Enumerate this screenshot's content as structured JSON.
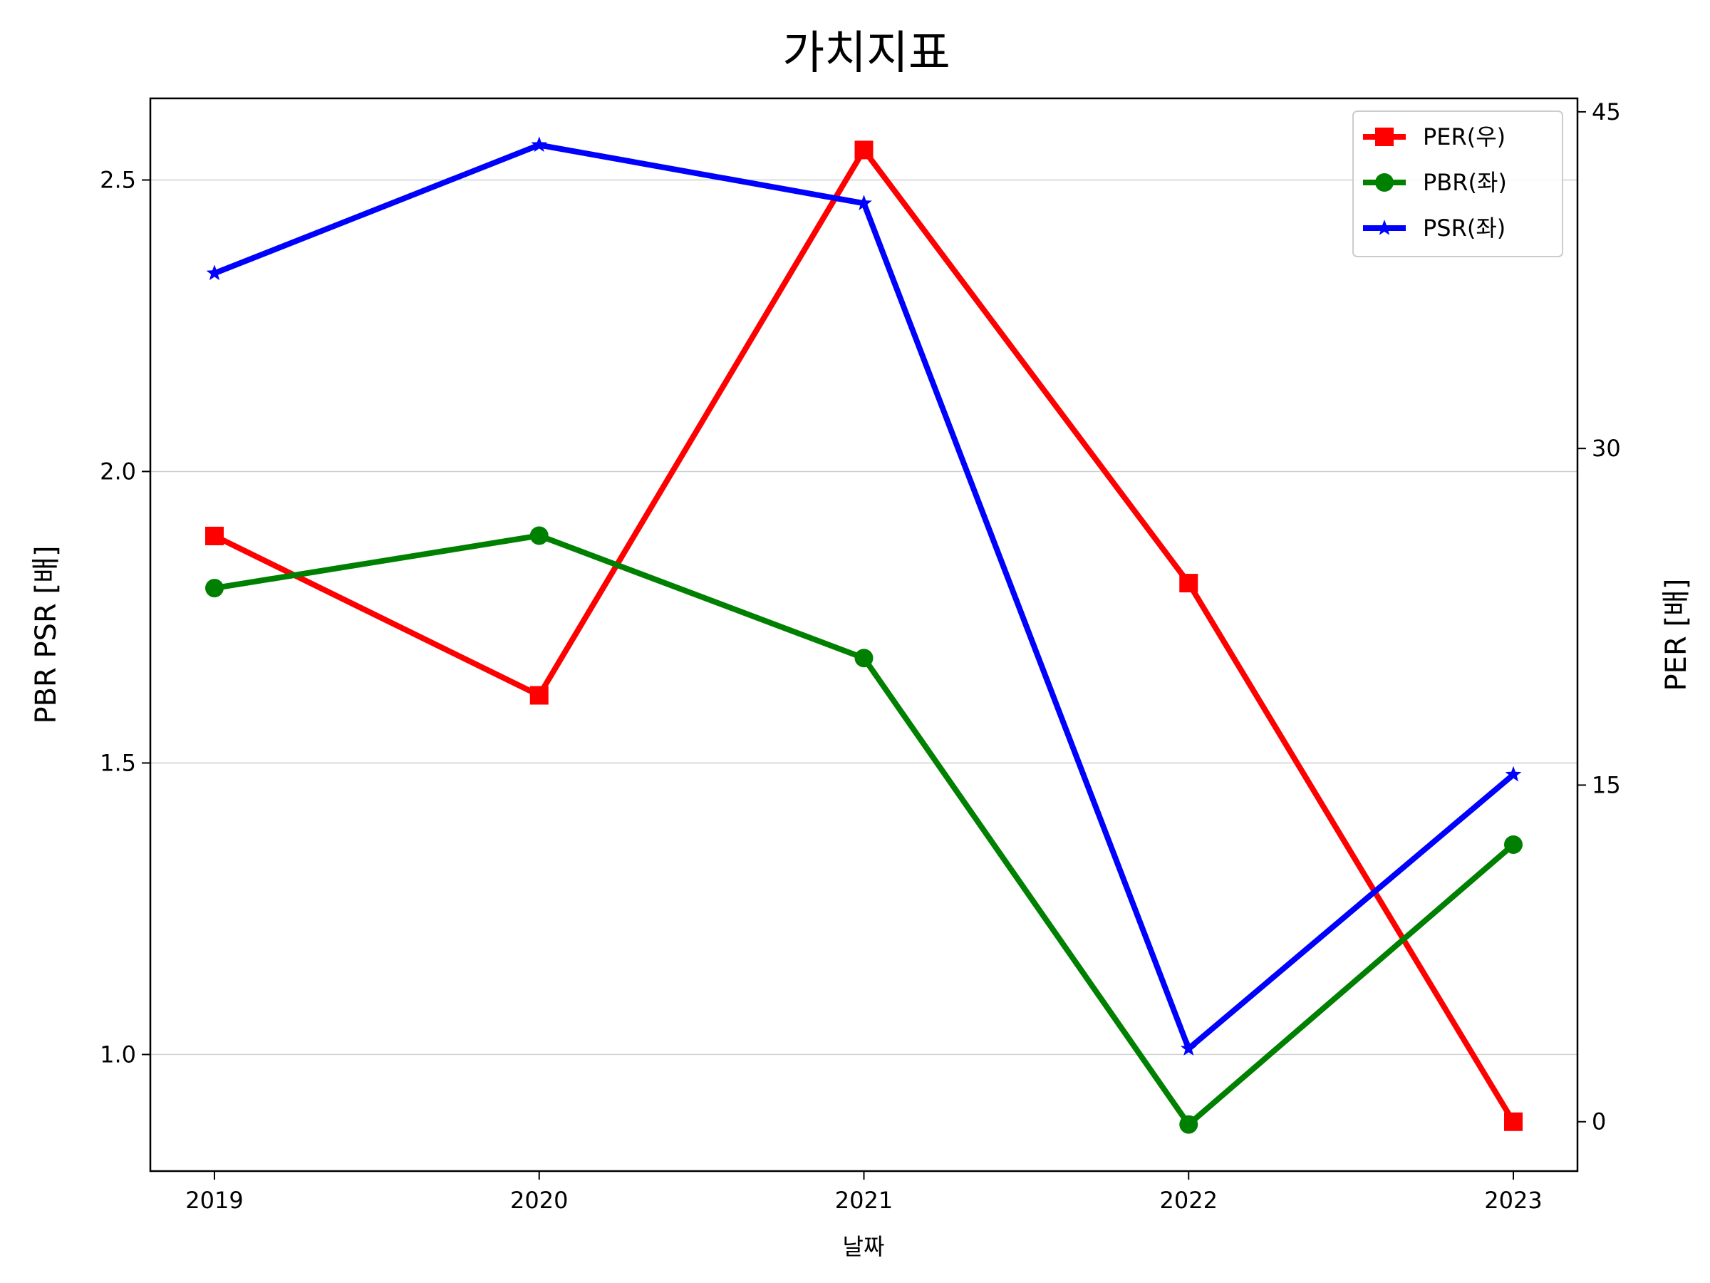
{
  "chart_data": {
    "type": "line",
    "title": "가치지표",
    "xlabel": "날짜",
    "ylabel_left": "PBR PSR [배]",
    "ylabel_right": "PER [배]",
    "ylabel_left_color": "#008000",
    "ylabel_right_color": "#ff0000",
    "categories": [
      "2019",
      "2020",
      "2021",
      "2022",
      "2023"
    ],
    "y_left": {
      "lim": [
        0.8,
        2.64
      ],
      "ticks": [
        1.0,
        1.5,
        2.0,
        2.5
      ],
      "tick_labels": [
        "1.0",
        "1.5",
        "2.0",
        "2.5"
      ]
    },
    "y_right": {
      "lim": [
        -2.2,
        45.6
      ],
      "ticks": [
        0,
        15,
        30,
        45
      ],
      "tick_labels": [
        "0",
        "15",
        "30",
        "45"
      ]
    },
    "grid": true,
    "legend_position": "top-right",
    "series": [
      {
        "name": "PER(우)",
        "axis": "right",
        "color": "#ff0000",
        "marker": "square",
        "values": [
          26.1,
          19.0,
          43.3,
          24.0,
          0.0
        ]
      },
      {
        "name": "PBR(좌)",
        "axis": "left",
        "color": "#008000",
        "marker": "circle",
        "values": [
          1.8,
          1.89,
          1.68,
          0.88,
          1.36
        ]
      },
      {
        "name": "PSR(좌)",
        "axis": "left",
        "color": "#0000ff",
        "marker": "star",
        "values": [
          2.34,
          2.56,
          2.46,
          1.01,
          1.48
        ]
      }
    ]
  }
}
